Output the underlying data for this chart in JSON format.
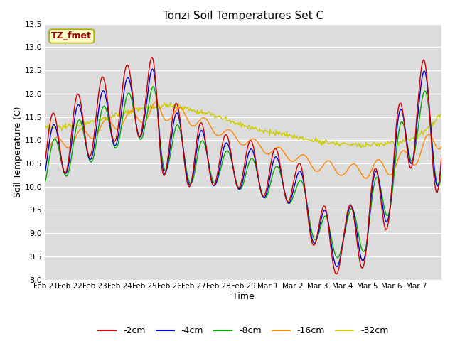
{
  "title": "Tonzi Soil Temperatures Set C",
  "xlabel": "Time",
  "ylabel": "Soil Temperature (C)",
  "annotation": "TZ_fmet",
  "ylim": [
    8.0,
    13.5
  ],
  "series_colors": {
    "-2cm": "#cc0000",
    "-4cm": "#0000cc",
    "-8cm": "#00aa00",
    "-16cm": "#ff8800",
    "-32cm": "#cccc00"
  },
  "x_labels": [
    "Feb 21",
    "Feb 22",
    "Feb 23",
    "Feb 24",
    "Feb 25",
    "Feb 26",
    "Feb 27",
    "Feb 28",
    "Feb 29",
    "Mar 1",
    "Mar 2",
    "Mar 3",
    "Mar 4",
    "Mar 5",
    "Mar 6",
    "Mar 7"
  ],
  "yticks": [
    8.0,
    8.5,
    9.0,
    9.5,
    10.0,
    10.5,
    11.0,
    11.5,
    12.0,
    12.5,
    13.0,
    13.5
  ],
  "n_points": 480
}
